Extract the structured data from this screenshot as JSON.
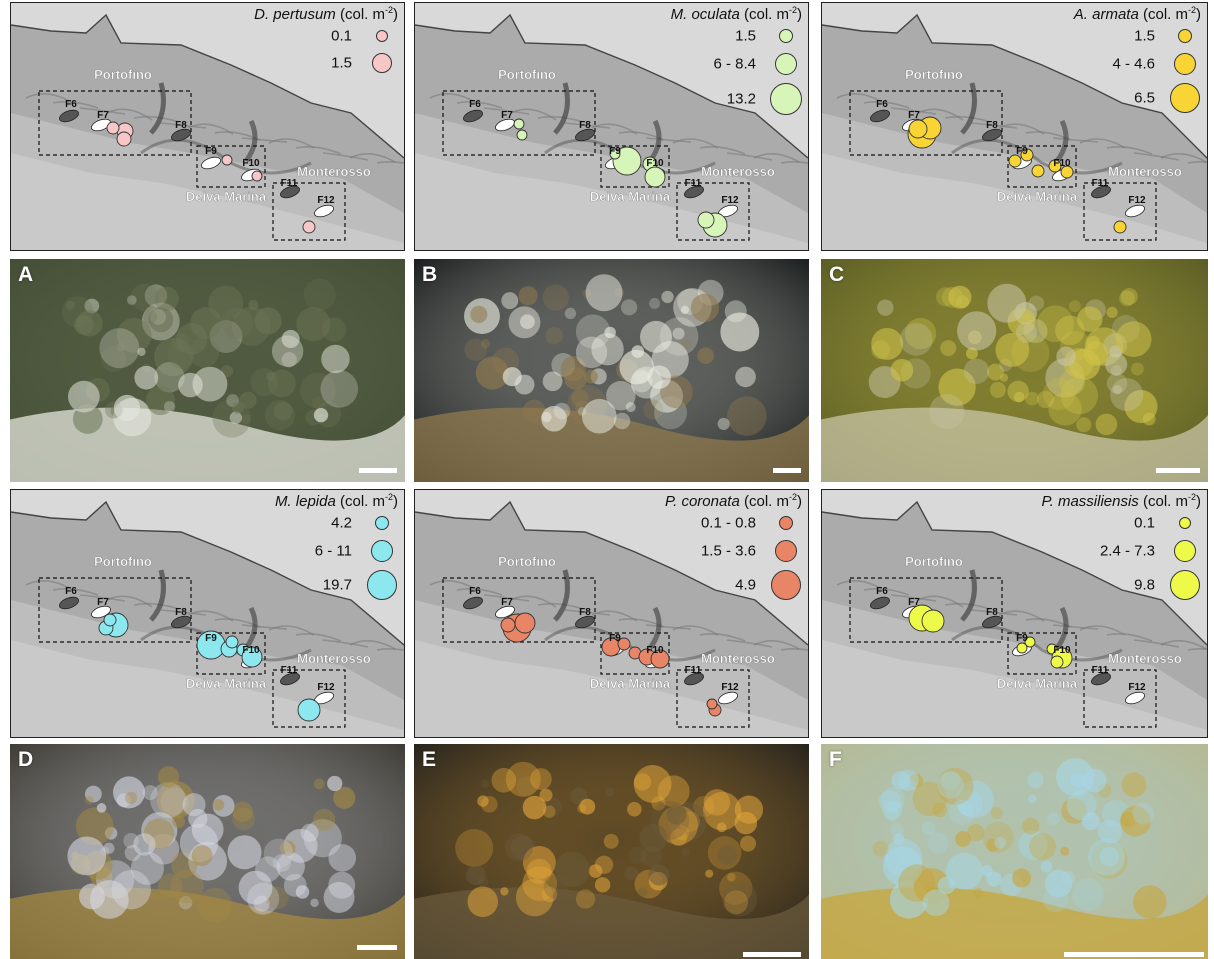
{
  "place_labels": {
    "portofino": "Portofino",
    "monterosso": "Monterosso",
    "deiva": "Deiva Marina"
  },
  "site_labels": [
    "F6",
    "F7",
    "F8",
    "F9",
    "F10",
    "F11",
    "F12"
  ],
  "maps": [
    {
      "species": "D. pertusum",
      "unit": "(col. m",
      "unit_sup": "-2",
      "unit_end": ")",
      "color": "#f7c6c7",
      "legend": [
        "0.1",
        "1.5"
      ]
    },
    {
      "species": "M. oculata",
      "unit": "(col. m",
      "unit_sup": "-2",
      "unit_end": ")",
      "color": "#d7f5b8",
      "legend": [
        "1.5",
        "6 - 8.4",
        "13.2"
      ]
    },
    {
      "species": "A. armata",
      "unit": "(col. m",
      "unit_sup": "-2",
      "unit_end": ")",
      "color": "#f8d535",
      "legend": [
        "1.5",
        "4 - 4.6",
        "6.5"
      ]
    },
    {
      "species": "M. lepida",
      "unit": "(col. m",
      "unit_sup": "-2",
      "unit_end": ")",
      "color": "#8ce8ee",
      "legend": [
        "4.2",
        "6 - 11",
        "19.7"
      ]
    },
    {
      "species": "P. coronata",
      "unit": "(col. m",
      "unit_sup": "-2",
      "unit_end": ")",
      "color": "#e88566",
      "legend": [
        "0.1 - 0.8",
        "1.5 - 3.6",
        "4.9"
      ]
    },
    {
      "species": "P. massiliensis",
      "unit": "(col. m",
      "unit_sup": "-2",
      "unit_end": ")",
      "color": "#eefa4a",
      "legend": [
        "0.1",
        "2.4 - 7.3",
        "9.8"
      ]
    }
  ],
  "photos": [
    {
      "label": "A",
      "palette": [
        "#3f4a32",
        "#6d7556",
        "#e4e6dc"
      ]
    },
    {
      "label": "B",
      "palette": [
        "#05080a",
        "#e9eadf",
        "#8f7a4e"
      ]
    },
    {
      "label": "C",
      "palette": [
        "#4e5221",
        "#cfc24a",
        "#c9c6a7"
      ]
    },
    {
      "label": "D",
      "palette": [
        "#2d2b22",
        "#d6d8e2",
        "#a58a43"
      ]
    },
    {
      "label": "E",
      "palette": [
        "#12151a",
        "#e2a53a",
        "#6b5b3c"
      ]
    },
    {
      "label": "F",
      "palette": [
        "#b7b58a",
        "#a6d6e6",
        "#c7a53a"
      ]
    }
  ]
}
